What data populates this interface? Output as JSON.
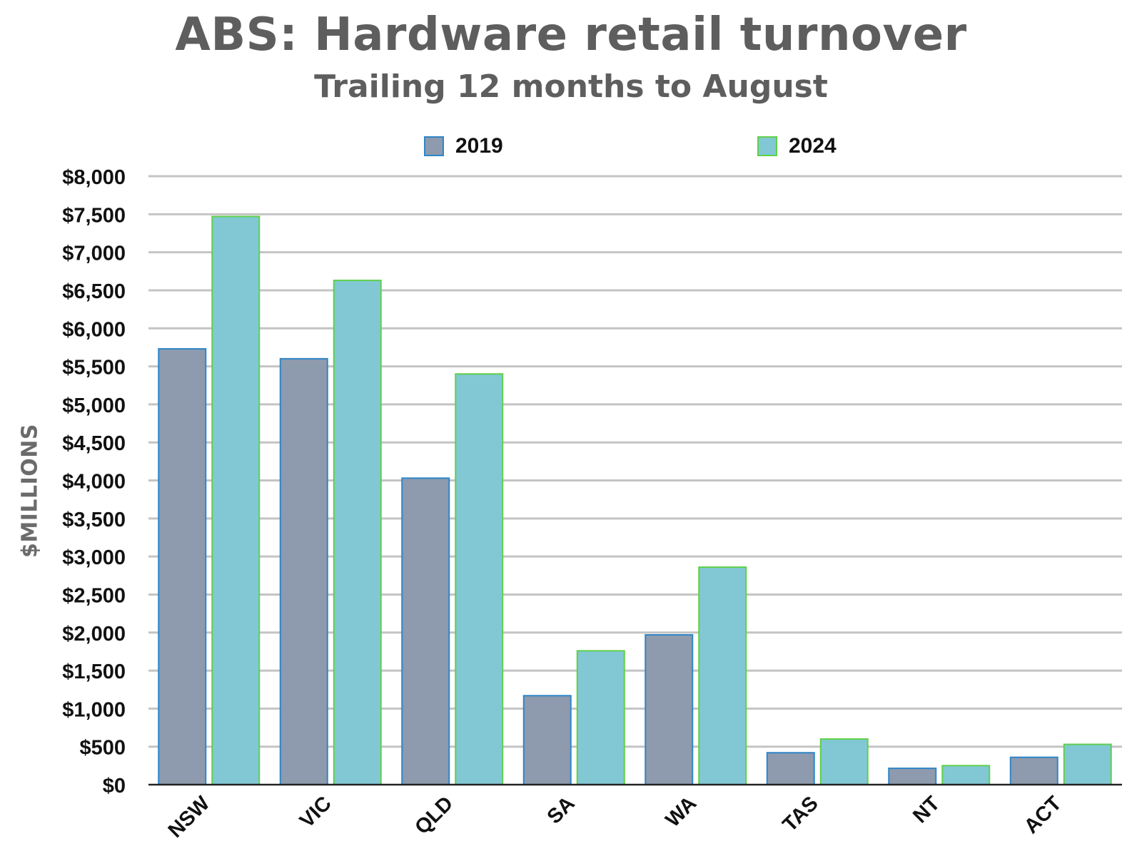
{
  "chart_data": {
    "type": "bar",
    "title": "ABS: Hardware retail turnover",
    "subtitle": "Trailing 12 months to August",
    "xlabel": "",
    "ylabel": "$MILLIONS",
    "categories": [
      "NSW",
      "VIC",
      "QLD",
      "SA",
      "WA",
      "TAS",
      "NT",
      "ACT"
    ],
    "series": [
      {
        "name": "2019",
        "values": [
          5730,
          5600,
          4030,
          1170,
          1970,
          420,
          215,
          360
        ],
        "fill": "#8e9aae",
        "stroke": "#2e86c8"
      },
      {
        "name": "2024",
        "values": [
          7470,
          6630,
          5400,
          1760,
          2860,
          600,
          250,
          530
        ],
        "fill": "#82c8d4",
        "stroke": "#5fd04a"
      }
    ],
    "ylim": [
      0,
      8000
    ],
    "yticks": [
      0,
      500,
      1000,
      1500,
      2000,
      2500,
      3000,
      3500,
      4000,
      4500,
      5000,
      5500,
      6000,
      6500,
      7000,
      7500,
      8000
    ],
    "ytick_labels": [
      "$0",
      "$500",
      "$1,000",
      "$1,500",
      "$2,000",
      "$2,500",
      "$3,000",
      "$3,500",
      "$4,000",
      "$4,500",
      "$5,000",
      "$5,500",
      "$6,000",
      "$6,500",
      "$7,000",
      "$7,500",
      "$8,000"
    ],
    "grid": true,
    "legend_position": "top-center"
  },
  "colors": {
    "title": "#5e5e5e",
    "gridline": "#c4c4c4",
    "axis": "#222222",
    "tick_label": "#111111"
  }
}
